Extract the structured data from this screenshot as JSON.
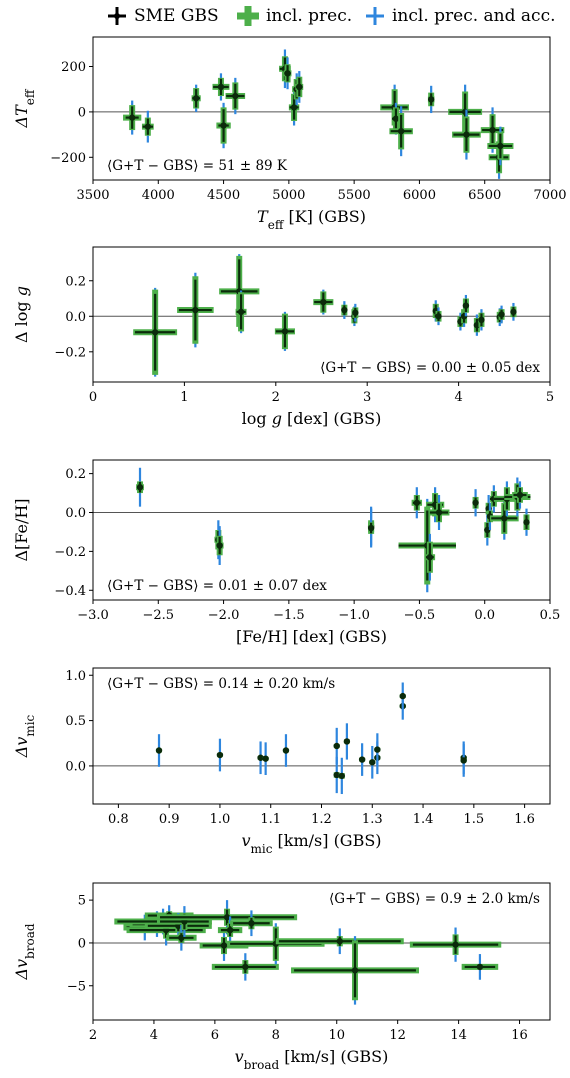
{
  "legend": [
    {
      "label": "SME GBS",
      "color": "#000000",
      "thick": 3
    },
    {
      "label": "incl. prec.",
      "color": "#4daf4a",
      "thick": 7
    },
    {
      "label": "incl. prec. and acc.",
      "color": "#2e86de",
      "thick": 3
    }
  ],
  "colors": {
    "sme": "#000000",
    "prec": "#4daf4a",
    "acc": "#2e86de",
    "dot": "#0b2b0b"
  },
  "chart_data": [
    {
      "type": "scatter",
      "xlabel": "T_eff [K] (GBS)",
      "ylabel": "ΔT_eff",
      "annotation": "⟨G+T − GBS⟩ = 51 ± 89 K",
      "xlim": [
        3500,
        7000
      ],
      "ylim": [
        -300,
        330
      ],
      "xticks": [
        3500,
        4000,
        4500,
        5000,
        5500,
        6000,
        6500,
        7000
      ],
      "yticks": [
        -200,
        0,
        200
      ],
      "points": [
        {
          "x": 3800,
          "y": -25,
          "xe": 50,
          "ye": 55,
          "yeAcc": 75,
          "xePrec": 70
        },
        {
          "x": 3920,
          "y": -65,
          "xe": 40,
          "ye": 40,
          "yeAcc": 70,
          "xePrec": 45
        },
        {
          "x": 4290,
          "y": 60,
          "xe": 30,
          "ye": 45,
          "yeAcc": 60,
          "xePrec": 35
        },
        {
          "x": 4480,
          "y": 110,
          "xe": 60,
          "ye": 40,
          "yeAcc": 60,
          "xePrec": 65
        },
        {
          "x": 4500,
          "y": -60,
          "xe": 40,
          "ye": 80,
          "yeAcc": 100,
          "xePrec": 55
        },
        {
          "x": 4590,
          "y": 70,
          "xe": 70,
          "ye": 60,
          "yeAcc": 80,
          "xePrec": 75
        },
        {
          "x": 4970,
          "y": 190,
          "xe": 40,
          "ye": 55,
          "yeAcc": 85,
          "xePrec": 45
        },
        {
          "x": 4990,
          "y": 170,
          "xe": 25,
          "ye": 40,
          "yeAcc": 70,
          "xePrec": 30
        },
        {
          "x": 5040,
          "y": 20,
          "xe": 35,
          "ye": 60,
          "yeAcc": 80,
          "xePrec": 40
        },
        {
          "x": 5060,
          "y": 100,
          "xe": 25,
          "ye": 45,
          "yeAcc": 70,
          "xePrec": 35
        },
        {
          "x": 5080,
          "y": 110,
          "xe": 25,
          "ye": 45,
          "yeAcc": 70,
          "xePrec": 30
        },
        {
          "x": 5810,
          "y": 20,
          "xe": 100,
          "ye": 80,
          "yeAcc": 100,
          "xePrec": 110
        },
        {
          "x": 5820,
          "y": -30,
          "xe": 30,
          "ye": 50,
          "yeAcc": 70,
          "xePrec": 30
        },
        {
          "x": 5860,
          "y": -85,
          "xe": 80,
          "ye": 80,
          "yeAcc": 110,
          "xePrec": 90
        },
        {
          "x": 6090,
          "y": 55,
          "xe": 20,
          "ye": 30,
          "yeAcc": 60,
          "xePrec": 25
        },
        {
          "x": 6350,
          "y": 0,
          "xe": 120,
          "ye": 90,
          "yeAcc": 120,
          "xePrec": 130
        },
        {
          "x": 6360,
          "y": -100,
          "xe": 100,
          "ye": 80,
          "yeAcc": 110,
          "xePrec": 110
        },
        {
          "x": 6560,
          "y": -80,
          "xe": 80,
          "ye": 70,
          "yeAcc": 100,
          "xePrec": 90
        },
        {
          "x": 6610,
          "y": -200,
          "xe": 70,
          "ye": 70,
          "yeAcc": 95,
          "xePrec": 80
        },
        {
          "x": 6620,
          "y": -150,
          "xe": 90,
          "ye": 60,
          "yeAcc": 85,
          "xePrec": 100
        }
      ]
    },
    {
      "type": "scatter",
      "xlabel": "log g [dex] (GBS)",
      "ylabel": "Δ log g",
      "annotation": "⟨G+T − GBS⟩ = 0.00 ± 0.05 dex",
      "xlim": [
        0,
        5
      ],
      "ylim": [
        -0.37,
        0.39
      ],
      "xticks": [
        0,
        1,
        2,
        3,
        4,
        5
      ],
      "yticks": [
        -0.2,
        0.0,
        0.2
      ],
      "points": [
        {
          "x": 0.68,
          "y": -0.09,
          "xe": 0.22,
          "ye": 0.24,
          "yeAcc": 0.25,
          "xePrec": 0.24
        },
        {
          "x": 1.12,
          "y": 0.035,
          "xe": 0.18,
          "ye": 0.19,
          "yeAcc": 0.21,
          "xePrec": 0.2
        },
        {
          "x": 1.6,
          "y": 0.14,
          "xe": 0.2,
          "ye": 0.2,
          "yeAcc": 0.21,
          "xePrec": 0.22
        },
        {
          "x": 1.62,
          "y": 0.025,
          "xe": 0.05,
          "ye": 0.11,
          "yeAcc": 0.12,
          "xePrec": 0.06
        },
        {
          "x": 2.1,
          "y": -0.085,
          "xe": 0.1,
          "ye": 0.1,
          "yeAcc": 0.11,
          "xePrec": 0.11
        },
        {
          "x": 2.52,
          "y": 0.08,
          "xe": 0.1,
          "ye": 0.06,
          "yeAcc": 0.07,
          "xePrec": 0.11
        },
        {
          "x": 2.75,
          "y": 0.035,
          "xe": 0.02,
          "ye": 0.03,
          "yeAcc": 0.05,
          "xePrec": 0.02
        },
        {
          "x": 2.86,
          "y": 0.0,
          "xe": 0.02,
          "ye": 0.04,
          "yeAcc": 0.055,
          "xePrec": 0.025
        },
        {
          "x": 2.87,
          "y": 0.02,
          "xe": 0.02,
          "ye": 0.03,
          "yeAcc": 0.05,
          "xePrec": 0.02
        },
        {
          "x": 3.75,
          "y": 0.03,
          "xe": 0.02,
          "ye": 0.04,
          "yeAcc": 0.06,
          "xePrec": 0.02
        },
        {
          "x": 3.78,
          "y": 0.0,
          "xe": 0.03,
          "ye": 0.03,
          "yeAcc": 0.05,
          "xePrec": 0.03
        },
        {
          "x": 4.02,
          "y": -0.03,
          "xe": 0.02,
          "ye": 0.03,
          "yeAcc": 0.05,
          "xePrec": 0.02
        },
        {
          "x": 4.06,
          "y": 0.0,
          "xe": 0.03,
          "ye": 0.04,
          "yeAcc": 0.06,
          "xePrec": 0.03
        },
        {
          "x": 4.08,
          "y": 0.06,
          "xe": 0.02,
          "ye": 0.04,
          "yeAcc": 0.06,
          "xePrec": 0.02
        },
        {
          "x": 4.2,
          "y": -0.05,
          "xe": 0.03,
          "ye": 0.04,
          "yeAcc": 0.06,
          "xePrec": 0.03
        },
        {
          "x": 4.25,
          "y": -0.02,
          "xe": 0.03,
          "ye": 0.04,
          "yeAcc": 0.06,
          "xePrec": 0.03
        },
        {
          "x": 4.45,
          "y": -0.005,
          "xe": 0.02,
          "ye": 0.03,
          "yeAcc": 0.05,
          "xePrec": 0.02
        },
        {
          "x": 4.47,
          "y": 0.01,
          "xe": 0.02,
          "ye": 0.03,
          "yeAcc": 0.05,
          "xePrec": 0.02
        },
        {
          "x": 4.6,
          "y": 0.025,
          "xe": 0.02,
          "ye": 0.03,
          "yeAcc": 0.05,
          "xePrec": 0.02
        }
      ]
    },
    {
      "type": "scatter",
      "xlabel": "[Fe/H] [dex] (GBS)",
      "ylabel": "Δ[Fe/H]",
      "annotation": "⟨G+T − GBS⟩ = 0.01 ± 0.07 dex",
      "xlim": [
        -3.0,
        0.5
      ],
      "ylim": [
        -0.45,
        0.27
      ],
      "xticks": [
        -3.0,
        -2.5,
        -2.0,
        -1.5,
        -1.0,
        -0.5,
        0.0,
        0.5
      ],
      "xtickLabels": [
        "−3.0",
        "−2.5",
        "−2.0",
        "−1.5",
        "−1.0",
        "−0.5",
        "0.0",
        "0.5"
      ],
      "yticks": [
        -0.4,
        -0.2,
        0.0,
        0.2
      ],
      "points": [
        {
          "x": -2.64,
          "y": 0.13,
          "xe": 0.02,
          "ye": 0.03,
          "yeAcc": 0.1,
          "xePrec": 0.03
        },
        {
          "x": -2.04,
          "y": -0.14,
          "xe": 0.02,
          "ye": 0.05,
          "yeAcc": 0.1,
          "xePrec": 0.03
        },
        {
          "x": -2.03,
          "y": -0.17,
          "xe": 0.02,
          "ye": 0.05,
          "yeAcc": 0.1,
          "xePrec": 0.03
        },
        {
          "x": -0.87,
          "y": -0.07,
          "xe": 0.02,
          "ye": 0.03,
          "yeAcc": 0.1,
          "xePrec": 0.02
        },
        {
          "x": -0.87,
          "y": -0.08,
          "xe": 0.02,
          "ye": 0.03,
          "yeAcc": 0.1,
          "xePrec": 0.02
        },
        {
          "x": -0.52,
          "y": 0.05,
          "xe": 0.03,
          "ye": 0.04,
          "yeAcc": 0.08,
          "xePrec": 0.04
        },
        {
          "x": -0.44,
          "y": -0.17,
          "xe": 0.22,
          "ye": 0.2,
          "yeAcc": 0.24,
          "xePrec": 0.22
        },
        {
          "x": -0.42,
          "y": -0.23,
          "xe": 0.03,
          "ye": 0.08,
          "yeAcc": 0.12,
          "xePrec": 0.04
        },
        {
          "x": -0.38,
          "y": 0.04,
          "xe": 0.06,
          "ye": 0.06,
          "yeAcc": 0.09,
          "xePrec": 0.07
        },
        {
          "x": -0.35,
          "y": 0.0,
          "xe": 0.07,
          "ye": 0.05,
          "yeAcc": 0.09,
          "xePrec": 0.08
        },
        {
          "x": -0.07,
          "y": 0.05,
          "xe": 0.02,
          "ye": 0.03,
          "yeAcc": 0.07,
          "xePrec": 0.02
        },
        {
          "x": 0.02,
          "y": -0.09,
          "xe": 0.02,
          "ye": 0.04,
          "yeAcc": 0.08,
          "xePrec": 0.02
        },
        {
          "x": 0.03,
          "y": 0.02,
          "xe": 0.02,
          "ye": 0.03,
          "yeAcc": 0.07,
          "xePrec": 0.02
        },
        {
          "x": 0.04,
          "y": -0.02,
          "xe": 0.02,
          "ye": 0.03,
          "yeAcc": 0.07,
          "xePrec": 0.02
        },
        {
          "x": 0.07,
          "y": 0.07,
          "xe": 0.03,
          "ye": 0.04,
          "yeAcc": 0.07,
          "xePrec": 0.03
        },
        {
          "x": 0.15,
          "y": -0.03,
          "xe": 0.1,
          "ye": 0.08,
          "yeAcc": 0.11,
          "xePrec": 0.11
        },
        {
          "x": 0.17,
          "y": 0.07,
          "xe": 0.1,
          "ye": 0.06,
          "yeAcc": 0.09,
          "xePrec": 0.1
        },
        {
          "x": 0.25,
          "y": 0.08,
          "xe": 0.1,
          "ye": 0.07,
          "yeAcc": 0.1,
          "xePrec": 0.1
        },
        {
          "x": 0.27,
          "y": 0.09,
          "xe": 0.05,
          "ye": 0.04,
          "yeAcc": 0.07,
          "xePrec": 0.06
        },
        {
          "x": 0.32,
          "y": -0.05,
          "xe": 0.02,
          "ye": 0.04,
          "yeAcc": 0.07,
          "xePrec": 0.02
        }
      ]
    },
    {
      "type": "scatter",
      "xlabel": "v_mic [km/s] (GBS)",
      "ylabel": "Δv_mic",
      "annotation": "⟨G+T − GBS⟩ = 0.14 ± 0.20 km/s",
      "xlim": [
        0.75,
        1.65
      ],
      "ylim": [
        -0.42,
        1.08
      ],
      "xticks": [
        0.8,
        0.9,
        1.0,
        1.1,
        1.2,
        1.3,
        1.4,
        1.5,
        1.6
      ],
      "yticks": [
        0.0,
        0.5,
        1.0
      ],
      "points": [
        {
          "x": 0.88,
          "y": 0.17,
          "xe": 0,
          "ye": 0.02,
          "yeAcc": 0.18,
          "xePrec": 0
        },
        {
          "x": 1.0,
          "y": 0.12,
          "xe": 0,
          "ye": 0.02,
          "yeAcc": 0.18,
          "xePrec": 0
        },
        {
          "x": 1.08,
          "y": 0.09,
          "xe": 0,
          "ye": 0.02,
          "yeAcc": 0.18,
          "xePrec": 0
        },
        {
          "x": 1.09,
          "y": 0.08,
          "xe": 0,
          "ye": 0.02,
          "yeAcc": 0.18,
          "xePrec": 0
        },
        {
          "x": 1.13,
          "y": 0.17,
          "xe": 0,
          "ye": 0.02,
          "yeAcc": 0.18,
          "xePrec": 0
        },
        {
          "x": 1.23,
          "y": 0.22,
          "xe": 0,
          "ye": 0.02,
          "yeAcc": 0.2,
          "xePrec": 0
        },
        {
          "x": 1.23,
          "y": -0.1,
          "xe": 0,
          "ye": 0.03,
          "yeAcc": 0.2,
          "xePrec": 0
        },
        {
          "x": 1.24,
          "y": -0.11,
          "xe": 0,
          "ye": 0.03,
          "yeAcc": 0.2,
          "xePrec": 0
        },
        {
          "x": 1.25,
          "y": 0.27,
          "xe": 0,
          "ye": 0.02,
          "yeAcc": 0.2,
          "xePrec": 0
        },
        {
          "x": 1.28,
          "y": 0.07,
          "xe": 0,
          "ye": 0.02,
          "yeAcc": 0.18,
          "xePrec": 0
        },
        {
          "x": 1.3,
          "y": 0.04,
          "xe": 0,
          "ye": 0.02,
          "yeAcc": 0.18,
          "xePrec": 0
        },
        {
          "x": 1.31,
          "y": 0.09,
          "xe": 0,
          "ye": 0.02,
          "yeAcc": 0.18,
          "xePrec": 0
        },
        {
          "x": 1.31,
          "y": 0.18,
          "xe": 0,
          "ye": 0.02,
          "yeAcc": 0.18,
          "xePrec": 0
        },
        {
          "x": 1.36,
          "y": 0.66,
          "xe": 0,
          "ye": 0.02,
          "yeAcc": 0.15,
          "xePrec": 0
        },
        {
          "x": 1.36,
          "y": 0.77,
          "xe": 0,
          "ye": 0.02,
          "yeAcc": 0.15,
          "xePrec": 0
        },
        {
          "x": 1.48,
          "y": 0.09,
          "xe": 0,
          "ye": 0.02,
          "yeAcc": 0.18,
          "xePrec": 0
        },
        {
          "x": 1.48,
          "y": 0.06,
          "xe": 0,
          "ye": 0.02,
          "yeAcc": 0.18,
          "xePrec": 0
        }
      ]
    },
    {
      "type": "scatter",
      "xlabel": "v_broad [km/s] (GBS)",
      "ylabel": "Δv_broad",
      "annotation": "⟨G+T − GBS⟩ = 0.9 ± 2.0 km/s",
      "xlim": [
        2,
        17
      ],
      "ylim": [
        -9,
        7
      ],
      "xticks": [
        2,
        4,
        6,
        8,
        10,
        12,
        14,
        16
      ],
      "yticks": [
        -5,
        0,
        5
      ],
      "points": [
        {
          "x": 3.7,
          "y": 1.8,
          "xe": 0.6,
          "ye": 0.5,
          "yeAcc": 1.5,
          "xePrec": 0.7
        },
        {
          "x": 4.1,
          "y": 2.2,
          "xe": 0.8,
          "ye": 0.6,
          "yeAcc": 1.5,
          "xePrec": 0.9
        },
        {
          "x": 4.3,
          "y": 2.5,
          "xe": 1.5,
          "ye": 0.5,
          "yeAcc": 1.5,
          "xePrec": 1.6
        },
        {
          "x": 4.4,
          "y": 1.5,
          "xe": 1.2,
          "ye": 1.0,
          "yeAcc": 1.8,
          "xePrec": 1.3
        },
        {
          "x": 4.5,
          "y": 3.2,
          "xe": 0.7,
          "ye": 0.5,
          "yeAcc": 1.2,
          "xePrec": 0.8
        },
        {
          "x": 4.8,
          "y": 2.0,
          "xe": 1.0,
          "ye": 0.7,
          "yeAcc": 1.5,
          "xePrec": 1.1
        },
        {
          "x": 4.9,
          "y": 0.6,
          "xe": 0.4,
          "ye": 0.6,
          "yeAcc": 1.5,
          "xePrec": 0.5
        },
        {
          "x": 5.0,
          "y": 2.5,
          "xe": 0.8,
          "ye": 1.0,
          "yeAcc": 1.8,
          "xePrec": 0.9
        },
        {
          "x": 6.3,
          "y": -0.3,
          "xe": 0.7,
          "ye": 1.0,
          "yeAcc": 1.8,
          "xePrec": 0.8
        },
        {
          "x": 6.4,
          "y": 3.0,
          "xe": 2.2,
          "ye": 1.0,
          "yeAcc": 2.0,
          "xePrec": 2.3
        },
        {
          "x": 6.5,
          "y": 1.5,
          "xe": 0.3,
          "ye": 0.8,
          "yeAcc": 1.6,
          "xePrec": 0.4
        },
        {
          "x": 7.0,
          "y": -2.8,
          "xe": 1.0,
          "ye": 0.8,
          "yeAcc": 1.6,
          "xePrec": 1.1
        },
        {
          "x": 7.2,
          "y": 2.3,
          "xe": 0.6,
          "ye": 0.7,
          "yeAcc": 1.5,
          "xePrec": 0.7
        },
        {
          "x": 8.0,
          "y": -0.1,
          "xe": 1.5,
          "ye": 2.0,
          "yeAcc": 2.4,
          "xePrec": 1.6
        },
        {
          "x": 10.1,
          "y": 0.2,
          "xe": 2.0,
          "ye": 0.6,
          "yeAcc": 1.5,
          "xePrec": 2.1
        },
        {
          "x": 10.6,
          "y": -3.2,
          "xe": 2.0,
          "ye": 3.5,
          "yeAcc": 4.0,
          "xePrec": 2.1
        },
        {
          "x": 13.9,
          "y": -0.2,
          "xe": 1.4,
          "ye": 1.2,
          "yeAcc": 2.0,
          "xePrec": 1.5
        },
        {
          "x": 14.7,
          "y": -2.8,
          "xe": 0.5,
          "ye": 0.3,
          "yeAcc": 1.5,
          "xePrec": 0.6
        }
      ]
    }
  ]
}
